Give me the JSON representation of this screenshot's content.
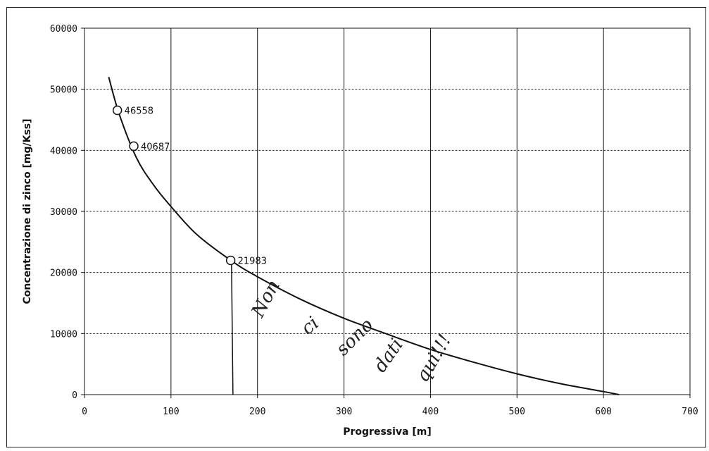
{
  "chart_data": {
    "type": "line",
    "title": "",
    "xlabel": "Progressiva [m]",
    "ylabel": "Concentrazione di zinco [mg/Kss]",
    "xlim": [
      0,
      700
    ],
    "ylim": [
      0,
      60000
    ],
    "x_ticks": [
      0,
      100,
      200,
      300,
      400,
      500,
      600,
      700
    ],
    "y_ticks": [
      0,
      10000,
      20000,
      30000,
      40000,
      50000,
      60000
    ],
    "x_tick_labels": [
      "0",
      "100",
      "200",
      "300",
      "400",
      "500",
      "600",
      "700"
    ],
    "y_tick_labels": [
      "0",
      "10000",
      "20000",
      "30000",
      "40000",
      "50000",
      "60000"
    ],
    "grid": true,
    "legend": "none",
    "series": [
      {
        "type": "line",
        "x": [
          28,
          40,
          60,
          80,
          100,
          130,
          170,
          200,
          250,
          300,
          350,
          400,
          450,
          500,
          550,
          600,
          618
        ],
        "y": [
          52000,
          46000,
          38800,
          34300,
          30800,
          26200,
          21900,
          19300,
          15600,
          12500,
          9900,
          7400,
          5300,
          3400,
          1800,
          500,
          0
        ]
      },
      {
        "type": "scatter",
        "marker": "open-circle",
        "x": [
          38,
          57,
          169
        ],
        "y": [
          46558,
          40687,
          21983
        ],
        "labels": [
          "46558",
          "40687",
          "21983"
        ]
      }
    ],
    "annotations": {
      "vertical_line": {
        "x": 170,
        "y_from": 0,
        "y_to": 21983
      },
      "handwritten_note": "Non ci sono dati qui!!!"
    }
  }
}
